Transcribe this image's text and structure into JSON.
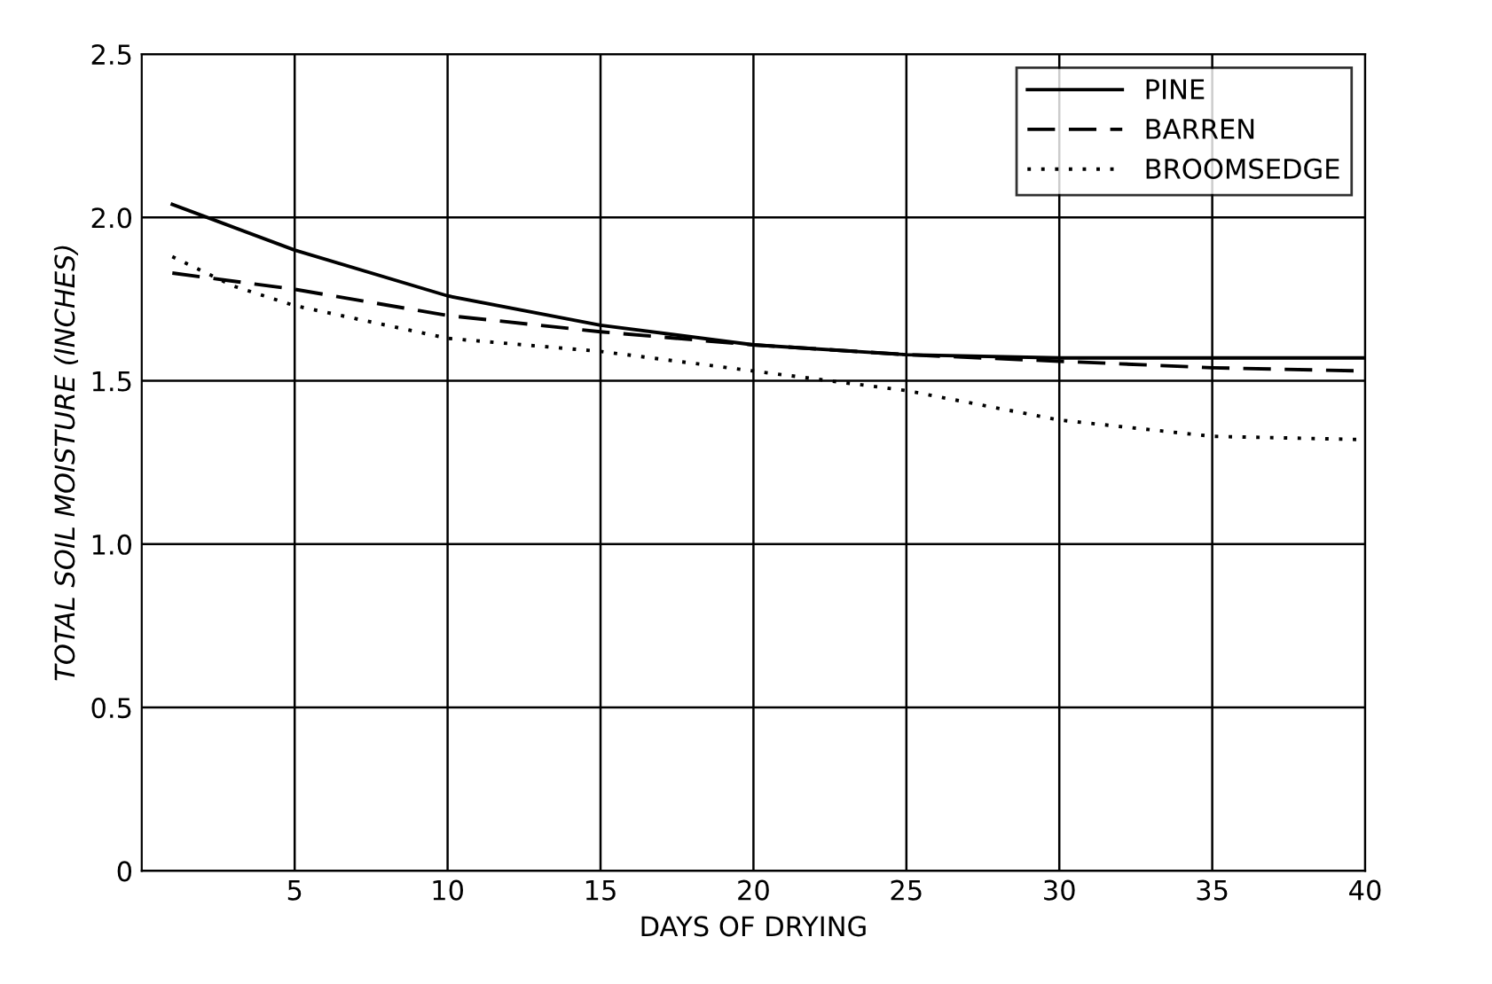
{
  "chart_data": {
    "type": "line",
    "xlabel": "DAYS OF DRYING",
    "ylabel": "TOTAL SOIL MOISTURE (INCHES)",
    "xlim": [
      0,
      40
    ],
    "ylim": [
      0,
      2.5
    ],
    "xticks": [
      5,
      10,
      15,
      20,
      25,
      30,
      35,
      40
    ],
    "yticks": [
      0,
      {
        "value": 0.5,
        "label": "0.5"
      },
      {
        "value": 1.0,
        "label": "1.0"
      },
      {
        "value": 1.5,
        "label": "1.5"
      },
      {
        "value": 2.0,
        "label": "2.0"
      },
      {
        "value": 2.5,
        "label": "2.5"
      }
    ],
    "grid": true,
    "legend": "top right",
    "marker": "none",
    "series": [
      {
        "name": "PINE",
        "color": "#000000",
        "line_style": "solid",
        "x": [
          1,
          5,
          10,
          15,
          20,
          25,
          30,
          35,
          40
        ],
        "values": [
          2.04,
          1.9,
          1.76,
          1.67,
          1.61,
          1.58,
          1.57,
          1.57,
          1.57
        ]
      },
      {
        "name": "BARREN",
        "color": "#000000",
        "line_style": "dashed",
        "x": [
          1,
          5,
          10,
          15,
          20,
          25,
          30,
          35,
          40
        ],
        "values": [
          1.83,
          1.78,
          1.7,
          1.65,
          1.61,
          1.58,
          1.56,
          1.54,
          1.53
        ]
      },
      {
        "name": "BROOMSEDGE",
        "color": "#000000",
        "line_style": "dotted",
        "x": [
          1,
          3,
          5,
          10,
          15,
          20,
          25,
          30,
          35,
          40
        ],
        "values": [
          1.88,
          1.79,
          1.73,
          1.63,
          1.59,
          1.53,
          1.47,
          1.38,
          1.33,
          1.32
        ]
      }
    ]
  }
}
